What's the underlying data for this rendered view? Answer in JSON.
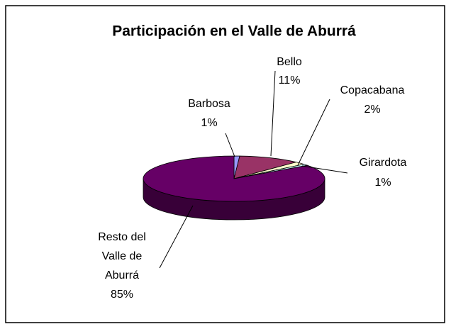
{
  "chart_data": {
    "type": "pie",
    "title": "Participación en el Valle de Aburrá",
    "categories": [
      "Barbosa",
      "Bello",
      "Copacabana",
      "Girardota",
      "Resto del Valle de Aburrá"
    ],
    "values": [
      1,
      11,
      2,
      1,
      85
    ],
    "value_labels": [
      "1%",
      "11%",
      "2%",
      "1%",
      "85%"
    ],
    "colors": [
      "#9999ff",
      "#993366",
      "#ffffcc",
      "#ccffff",
      "#660066"
    ]
  }
}
